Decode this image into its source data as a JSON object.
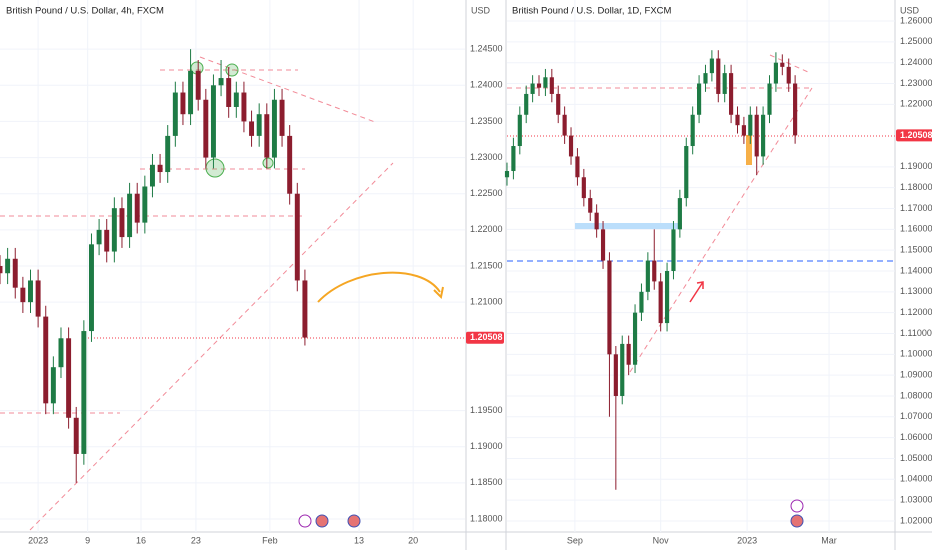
{
  "chart_data": [
    {
      "type": "candlestick",
      "title": "British Pound / U.S. Dollar, 4h, FXCM",
      "axis_label": "USD",
      "up_color": "#1e7b45",
      "down_color": "#8c1d2e",
      "xlim": [
        0,
        61
      ],
      "ylim": [
        1.1782,
        1.2518
      ],
      "xticks": [
        {
          "value": 5,
          "label": "2023"
        },
        {
          "value": 11.5,
          "label": "9"
        },
        {
          "value": 18.5,
          "label": "16"
        },
        {
          "value": 25.7,
          "label": "23"
        },
        {
          "value": 35.4,
          "label": "Feb"
        },
        {
          "value": 47.1,
          "label": "13"
        },
        {
          "value": 54.2,
          "label": "20"
        }
      ],
      "yticks": [
        {
          "value": 1.245,
          "label": "1.24500"
        },
        {
          "value": 1.24,
          "label": "1.24000"
        },
        {
          "value": 1.235,
          "label": "1.23500"
        },
        {
          "value": 1.23,
          "label": "1.23000"
        },
        {
          "value": 1.225,
          "label": "1.22500"
        },
        {
          "value": 1.22,
          "label": "1.22000"
        },
        {
          "value": 1.215,
          "label": "1.21500"
        },
        {
          "value": 1.21,
          "label": "1.21000"
        },
        {
          "value": 1.195,
          "label": "1.19500"
        },
        {
          "value": 1.19,
          "label": "1.19000"
        },
        {
          "value": 1.185,
          "label": "1.18500"
        },
        {
          "value": 1.18,
          "label": "1.18000"
        }
      ],
      "last_price": {
        "value": 1.20508,
        "label": "1.20508"
      },
      "open": [
        1.215,
        1.214,
        1.216,
        1.212,
        1.21,
        1.213,
        1.208,
        1.196,
        1.201,
        1.205,
        1.194,
        1.189,
        1.206,
        1.218,
        1.22,
        1.217,
        1.223,
        1.219,
        1.225,
        1.221,
        1.226,
        1.229,
        1.228,
        1.233,
        1.239,
        1.236,
        1.242,
        1.238,
        1.23,
        1.24,
        1.241,
        1.237,
        1.239,
        1.235,
        1.233,
        1.236,
        1.23,
        1.238,
        1.233,
        1.225,
        1.213
      ],
      "high": [
        1.2165,
        1.2175,
        1.2175,
        1.2135,
        1.2145,
        1.2145,
        1.2095,
        1.2025,
        1.2065,
        1.2065,
        1.1955,
        1.2075,
        1.2195,
        1.2215,
        1.2215,
        1.2245,
        1.2245,
        1.2265,
        1.2265,
        1.2275,
        1.2305,
        1.2305,
        1.2345,
        1.2405,
        1.2405,
        1.245,
        1.2435,
        1.2395,
        1.2415,
        1.2435,
        1.2425,
        1.2405,
        1.2405,
        1.2365,
        1.2375,
        1.2375,
        1.2395,
        1.2395,
        1.2345,
        1.2265,
        1.2145
      ],
      "low": [
        1.2125,
        1.2125,
        1.2105,
        1.2085,
        1.2085,
        1.2065,
        1.1945,
        1.1945,
        1.1995,
        1.1925,
        1.185,
        1.1875,
        1.2045,
        1.2165,
        1.2155,
        1.2155,
        1.2175,
        1.2175,
        1.2195,
        1.2195,
        1.2245,
        1.2265,
        1.2265,
        1.2315,
        1.2345,
        1.2345,
        1.2365,
        1.2285,
        1.2285,
        1.2385,
        1.2355,
        1.2355,
        1.2335,
        1.2315,
        1.2315,
        1.2285,
        1.2285,
        1.2315,
        1.2235,
        1.2115,
        1.204
      ],
      "close": [
        1.214,
        1.216,
        1.212,
        1.21,
        1.213,
        1.208,
        1.196,
        1.201,
        1.205,
        1.194,
        1.189,
        1.206,
        1.218,
        1.22,
        1.217,
        1.223,
        1.219,
        1.225,
        1.221,
        1.226,
        1.229,
        1.228,
        1.233,
        1.239,
        1.236,
        1.242,
        1.238,
        1.23,
        1.24,
        1.241,
        1.237,
        1.239,
        1.235,
        1.233,
        1.236,
        1.23,
        1.238,
        1.233,
        1.225,
        1.213,
        1.2051
      ]
    },
    {
      "type": "candlestick",
      "title": "British Pound / U.S. Dollar, 1D, FXCM",
      "axis_label": "USD",
      "up_color": "#1e7b45",
      "down_color": "#8c1d2e",
      "xlim": [
        0,
        60.6
      ],
      "ylim": [
        1.0147,
        1.2701
      ],
      "xticks": [
        {
          "value": 10.6,
          "label": "Sep"
        },
        {
          "value": 24,
          "label": "Nov"
        },
        {
          "value": 37.5,
          "label": "2023"
        },
        {
          "value": 50.3,
          "label": "Mar"
        }
      ],
      "yticks": [
        {
          "value": 1.26,
          "label": "1.26000"
        },
        {
          "value": 1.25,
          "label": "1.25000"
        },
        {
          "value": 1.24,
          "label": "1.24000"
        },
        {
          "value": 1.23,
          "label": "1.23000"
        },
        {
          "value": 1.22,
          "label": "1.22000"
        },
        {
          "value": 1.19,
          "label": "1.19000"
        },
        {
          "value": 1.18,
          "label": "1.18000"
        },
        {
          "value": 1.17,
          "label": "1.17000"
        },
        {
          "value": 1.16,
          "label": "1.16000"
        },
        {
          "value": 1.15,
          "label": "1.15000"
        },
        {
          "value": 1.14,
          "label": "1.14000"
        },
        {
          "value": 1.13,
          "label": "1.13000"
        },
        {
          "value": 1.12,
          "label": "1.12000"
        },
        {
          "value": 1.11,
          "label": "1.11000"
        },
        {
          "value": 1.1,
          "label": "1.10000"
        },
        {
          "value": 1.09,
          "label": "1.09000"
        },
        {
          "value": 1.08,
          "label": "1.08000"
        },
        {
          "value": 1.07,
          "label": "1.07000"
        },
        {
          "value": 1.06,
          "label": "1.06000"
        },
        {
          "value": 1.05,
          "label": "1.05000"
        },
        {
          "value": 1.04,
          "label": "1.04000"
        },
        {
          "value": 1.03,
          "label": "1.03000"
        },
        {
          "value": 1.02,
          "label": "1.02000"
        }
      ],
      "last_price": {
        "value": 1.20508,
        "label": "1.20508"
      },
      "open": [
        1.185,
        1.188,
        1.2,
        1.215,
        1.225,
        1.23,
        1.228,
        1.233,
        1.225,
        1.215,
        1.205,
        1.195,
        1.185,
        1.175,
        1.168,
        1.16,
        1.145,
        1.1,
        1.08,
        1.105,
        1.095,
        1.12,
        1.13,
        1.145,
        1.135,
        1.115,
        1.14,
        1.16,
        1.175,
        1.2,
        1.215,
        1.23,
        1.235,
        1.242,
        1.225,
        1.235,
        1.215,
        1.21,
        1.205,
        1.215,
        1.195,
        1.215,
        1.23,
        1.24,
        1.238,
        1.23
      ],
      "high": [
        1.192,
        1.204,
        1.219,
        1.229,
        1.234,
        1.234,
        1.237,
        1.237,
        1.229,
        1.219,
        1.209,
        1.199,
        1.189,
        1.179,
        1.172,
        1.164,
        1.149,
        1.104,
        1.109,
        1.109,
        1.124,
        1.134,
        1.149,
        1.16,
        1.139,
        1.144,
        1.164,
        1.179,
        1.204,
        1.219,
        1.234,
        1.239,
        1.246,
        1.246,
        1.239,
        1.239,
        1.219,
        1.214,
        1.219,
        1.219,
        1.219,
        1.234,
        1.245,
        1.244,
        1.242,
        1.234
      ],
      "low": [
        1.181,
        1.184,
        1.196,
        1.211,
        1.221,
        1.224,
        1.224,
        1.221,
        1.211,
        1.201,
        1.191,
        1.181,
        1.171,
        1.164,
        1.156,
        1.141,
        1.07,
        1.035,
        1.076,
        1.09,
        1.091,
        1.116,
        1.126,
        1.131,
        1.111,
        1.111,
        1.136,
        1.156,
        1.171,
        1.196,
        1.211,
        1.226,
        1.231,
        1.221,
        1.221,
        1.211,
        1.206,
        1.201,
        1.201,
        1.186,
        1.191,
        1.211,
        1.226,
        1.234,
        1.226,
        1.2011
      ],
      "close": [
        1.188,
        1.2,
        1.215,
        1.225,
        1.23,
        1.228,
        1.233,
        1.225,
        1.215,
        1.205,
        1.195,
        1.185,
        1.175,
        1.168,
        1.16,
        1.145,
        1.1,
        1.08,
        1.105,
        1.095,
        1.12,
        1.13,
        1.145,
        1.135,
        1.115,
        1.14,
        1.16,
        1.175,
        1.2,
        1.215,
        1.23,
        1.235,
        1.242,
        1.225,
        1.235,
        1.215,
        1.21,
        1.205,
        1.215,
        1.195,
        1.215,
        1.23,
        1.24,
        1.238,
        1.23,
        1.2051
      ]
    }
  ]
}
